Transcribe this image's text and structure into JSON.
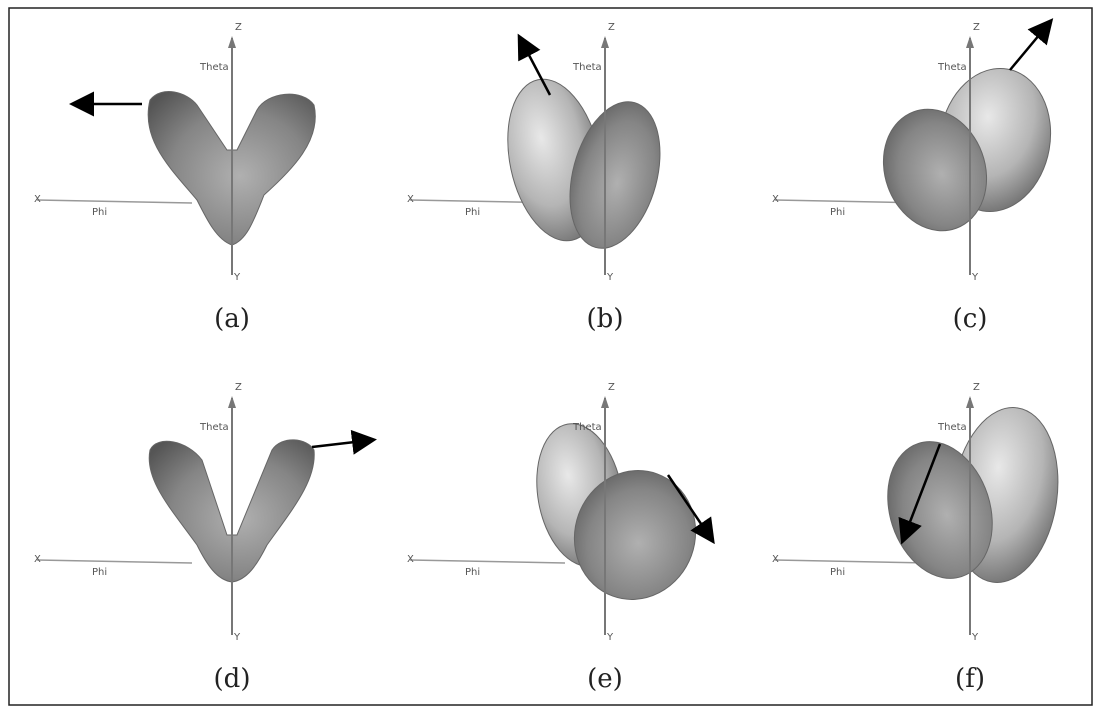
{
  "panels": [
    {
      "caption": "(a)",
      "axes": {
        "z": "Z",
        "theta": "Theta",
        "x": "X",
        "phi": "Phi",
        "y": "Y"
      }
    },
    {
      "caption": "(b)",
      "axes": {
        "z": "Z",
        "theta": "Theta",
        "x": "X",
        "phi": "Phi",
        "y": "Y"
      }
    },
    {
      "caption": "(c)",
      "axes": {
        "z": "Z",
        "theta": "Theta",
        "x": "X",
        "phi": "Phi",
        "y": "Y"
      }
    },
    {
      "caption": "(d)",
      "axes": {
        "z": "Z",
        "theta": "Theta",
        "x": "X",
        "phi": "Phi",
        "y": "Y"
      }
    },
    {
      "caption": "(e)",
      "axes": {
        "z": "Z",
        "theta": "Theta",
        "x": "X",
        "phi": "Phi",
        "y": "Y"
      }
    },
    {
      "caption": "(f)",
      "axes": {
        "z": "Z",
        "theta": "Theta",
        "x": "X",
        "phi": "Phi",
        "y": "Y"
      }
    }
  ]
}
